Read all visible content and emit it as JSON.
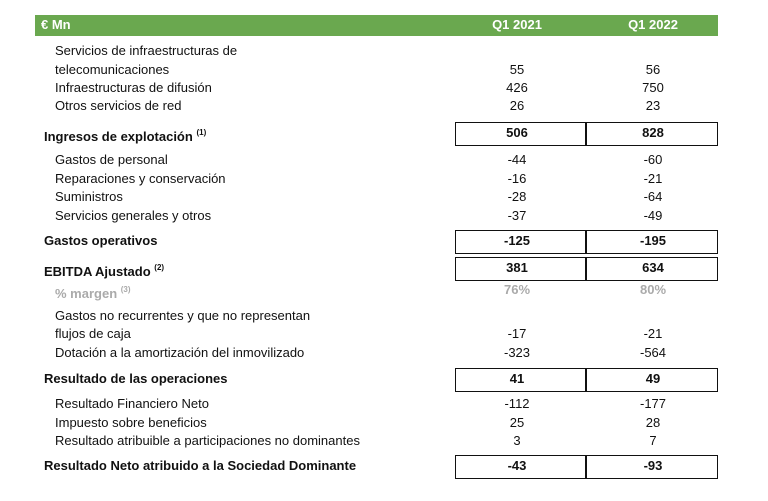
{
  "header": {
    "unit": "€ Mn",
    "columns": [
      "Q1 2021",
      "Q1 2022"
    ]
  },
  "table": {
    "rows": [
      {
        "label": [
          "Servicios de infraestructuras de",
          "telecomunicaciones"
        ],
        "values": [
          "55",
          "56"
        ]
      },
      {
        "label": [
          "Infraestructuras de difusión"
        ],
        "values": [
          "426",
          "750"
        ]
      },
      {
        "label": [
          "Otros servicios de red"
        ],
        "values": [
          "26",
          "23"
        ]
      },
      {
        "label": [
          "Ingresos de explotación"
        ],
        "note": "(1)",
        "values": [
          "506",
          "828"
        ]
      },
      {
        "label": [
          "Gastos de personal"
        ],
        "values": [
          "-44",
          "-60"
        ]
      },
      {
        "label": [
          "Reparaciones y conservación"
        ],
        "values": [
          "-16",
          "-21"
        ]
      },
      {
        "label": [
          "Suministros"
        ],
        "values": [
          "-28",
          "-64"
        ]
      },
      {
        "label": [
          "Servicios generales y otros"
        ],
        "values": [
          "-37",
          "-49"
        ]
      },
      {
        "label": [
          "Gastos operativos"
        ],
        "values": [
          "-125",
          "-195"
        ]
      },
      {
        "label": [
          "EBITDA Ajustado"
        ],
        "note": "(2)",
        "values": [
          "381",
          "634"
        ]
      },
      {
        "label": [
          "% margen"
        ],
        "note": "(3)",
        "values": [
          "76%",
          "80%"
        ]
      },
      {
        "label": [
          "Gastos no recurrentes y que no representan",
          "flujos de caja"
        ],
        "values": [
          "-17",
          "-21"
        ]
      },
      {
        "label": [
          "Dotación a la amortización del inmovilizado"
        ],
        "values": [
          "-323",
          "-564"
        ]
      },
      {
        "label": [
          "Resultado de las operaciones"
        ],
        "values": [
          "41",
          "49"
        ]
      },
      {
        "label": [
          "Resultado Financiero Neto"
        ],
        "values": [
          "-112",
          "-177"
        ]
      },
      {
        "label": [
          "Impuesto sobre beneficios"
        ],
        "values": [
          "25",
          "28"
        ]
      },
      {
        "label": [
          "Resultado atribuible a participaciones no dominantes"
        ],
        "values": [
          "3",
          "7"
        ]
      },
      {
        "label": [
          "Resultado Neto atribuido a la Sociedad Dominante"
        ],
        "values": [
          "-43",
          "-93"
        ]
      }
    ]
  }
}
